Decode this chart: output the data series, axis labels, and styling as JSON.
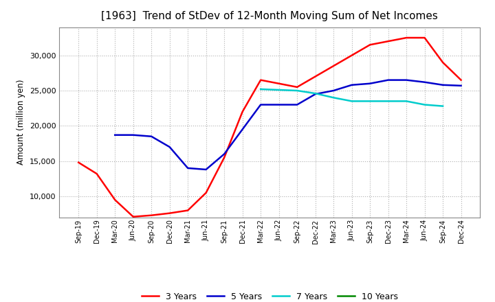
{
  "title": "[1963]  Trend of StDev of 12-Month Moving Sum of Net Incomes",
  "ylabel": "Amount (million yen)",
  "x_labels": [
    "Sep-19",
    "Dec-19",
    "Mar-20",
    "Jun-20",
    "Sep-20",
    "Dec-20",
    "Mar-21",
    "Jun-21",
    "Sep-21",
    "Dec-21",
    "Mar-22",
    "Jun-22",
    "Sep-22",
    "Dec-22",
    "Mar-23",
    "Jun-23",
    "Sep-23",
    "Dec-23",
    "Mar-24",
    "Jun-24",
    "Sep-24",
    "Dec-24"
  ],
  "series": {
    "3 Years": {
      "color": "#ff0000",
      "values": [
        14800,
        13200,
        9500,
        7100,
        7300,
        7600,
        8000,
        10500,
        15500,
        22000,
        26500,
        26000,
        25500,
        27000,
        28500,
        30000,
        31500,
        32000,
        32500,
        32500,
        29000,
        26500
      ]
    },
    "5 Years": {
      "color": "#0000cc",
      "values": [
        null,
        null,
        18700,
        18700,
        18500,
        17000,
        14000,
        13800,
        16000,
        19500,
        23000,
        23000,
        23000,
        24500,
        25000,
        25800,
        26000,
        26500,
        26500,
        26200,
        25800,
        25700
      ]
    },
    "7 Years": {
      "color": "#00cccc",
      "values": [
        null,
        null,
        null,
        null,
        null,
        null,
        null,
        null,
        null,
        null,
        25200,
        25100,
        25000,
        24600,
        24000,
        23500,
        23500,
        23500,
        23500,
        23000,
        22800,
        null
      ]
    },
    "10 Years": {
      "color": "#008800",
      "values": [
        null,
        null,
        null,
        null,
        null,
        null,
        null,
        null,
        null,
        null,
        null,
        null,
        null,
        null,
        null,
        null,
        null,
        null,
        null,
        null,
        null,
        null
      ]
    }
  },
  "ylim": [
    7000,
    34000
  ],
  "yticks": [
    10000,
    15000,
    20000,
    25000,
    30000
  ],
  "background_color": "#ffffff",
  "grid_color": "#b0b0b0",
  "title_fontsize": 11,
  "legend_entries": [
    "3 Years",
    "5 Years",
    "7 Years",
    "10 Years"
  ],
  "legend_colors": [
    "#ff0000",
    "#0000cc",
    "#00cccc",
    "#008800"
  ]
}
